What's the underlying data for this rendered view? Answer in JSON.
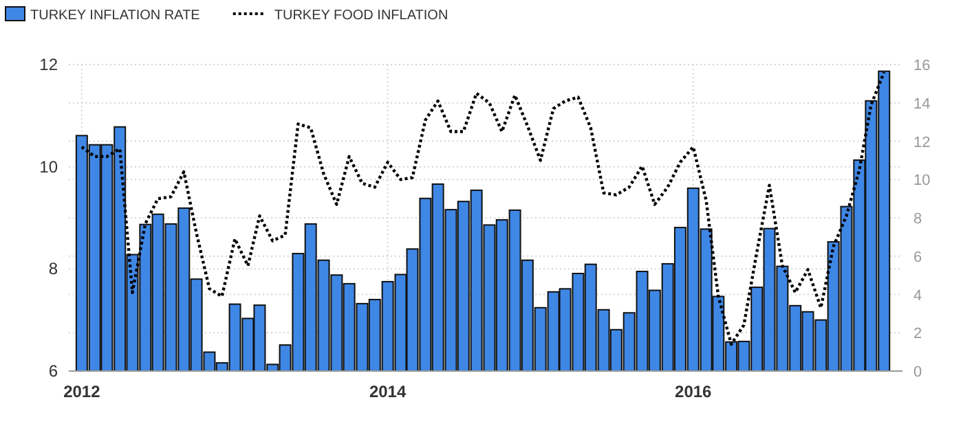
{
  "chart_data": {
    "type": "bar",
    "legend": "top left",
    "grid": true,
    "tick_labels": true,
    "x": [
      "2012-01",
      "2012-02",
      "2012-03",
      "2012-04",
      "2012-05",
      "2012-06",
      "2012-07",
      "2012-08",
      "2012-09",
      "2012-10",
      "2012-11",
      "2012-12",
      "2013-01",
      "2013-02",
      "2013-03",
      "2013-04",
      "2013-05",
      "2013-06",
      "2013-07",
      "2013-08",
      "2013-09",
      "2013-10",
      "2013-11",
      "2013-12",
      "2014-01",
      "2014-02",
      "2014-03",
      "2014-04",
      "2014-05",
      "2014-06",
      "2014-07",
      "2014-08",
      "2014-09",
      "2014-10",
      "2014-11",
      "2014-12",
      "2015-01",
      "2015-02",
      "2015-03",
      "2015-04",
      "2015-05",
      "2015-06",
      "2015-07",
      "2015-08",
      "2015-09",
      "2015-10",
      "2015-11",
      "2015-12",
      "2016-01",
      "2016-02",
      "2016-03",
      "2016-04",
      "2016-05",
      "2016-06",
      "2016-07",
      "2016-08",
      "2016-09",
      "2016-10",
      "2016-11",
      "2016-12",
      "2017-01",
      "2017-02",
      "2017-03",
      "2017-04"
    ],
    "xlim": [
      "2011-12-01",
      "2017-05-15"
    ],
    "xticks": [
      "2012",
      "2014",
      "2016"
    ],
    "ylim": [
      6,
      12
    ],
    "yticks": [
      6,
      8,
      10,
      12
    ],
    "y2lim": [
      0,
      16
    ],
    "y2ticks": [
      0,
      2,
      4,
      6,
      8,
      10,
      12,
      14,
      16
    ],
    "series": [
      {
        "name": "TURKEY INFLATION RATE",
        "color": "#3f87e5",
        "values": [
          10.61,
          10.43,
          10.43,
          10.78,
          8.28,
          8.87,
          9.07,
          8.88,
          9.19,
          7.8,
          6.37,
          6.16,
          7.31,
          7.03,
          7.29,
          6.13,
          6.51,
          8.3,
          8.88,
          8.17,
          7.88,
          7.71,
          7.32,
          7.4,
          7.75,
          7.89,
          8.39,
          9.38,
          9.66,
          9.16,
          9.32,
          9.54,
          8.86,
          8.96,
          9.15,
          8.17,
          7.24,
          7.55,
          7.61,
          7.91,
          8.09,
          7.2,
          6.81,
          7.14,
          7.95,
          7.58,
          8.1,
          8.81,
          9.58,
          8.78,
          7.46,
          6.57,
          6.58,
          7.64,
          8.79,
          8.05,
          7.28,
          7.16,
          7.0,
          8.53,
          9.22,
          10.13,
          11.29,
          11.87
        ]
      },
      {
        "name": "TURKEY FOOD INFLATION",
        "type": "line",
        "axis": "y2",
        "line_style": "dotted",
        "color": "#000000",
        "values": [
          11.7,
          11.2,
          11.2,
          11.6,
          4.1,
          7.7,
          9.0,
          9.1,
          10.4,
          7.2,
          4.3,
          3.9,
          6.9,
          5.5,
          8.1,
          6.8,
          7.1,
          12.9,
          12.7,
          10.3,
          8.7,
          11.2,
          9.8,
          9.6,
          10.9,
          10.0,
          10.1,
          13.1,
          14.1,
          12.5,
          12.5,
          14.5,
          14.0,
          12.5,
          14.4,
          12.8,
          11.0,
          13.7,
          14.1,
          14.3,
          12.7,
          9.3,
          9.2,
          9.6,
          10.7,
          8.7,
          9.6,
          10.9,
          11.7,
          8.9,
          3.9,
          1.4,
          2.4,
          6.2,
          9.7,
          5.5,
          4.1,
          5.3,
          3.3,
          6.5,
          8.1,
          10.5,
          13.9,
          15.6
        ]
      }
    ]
  }
}
